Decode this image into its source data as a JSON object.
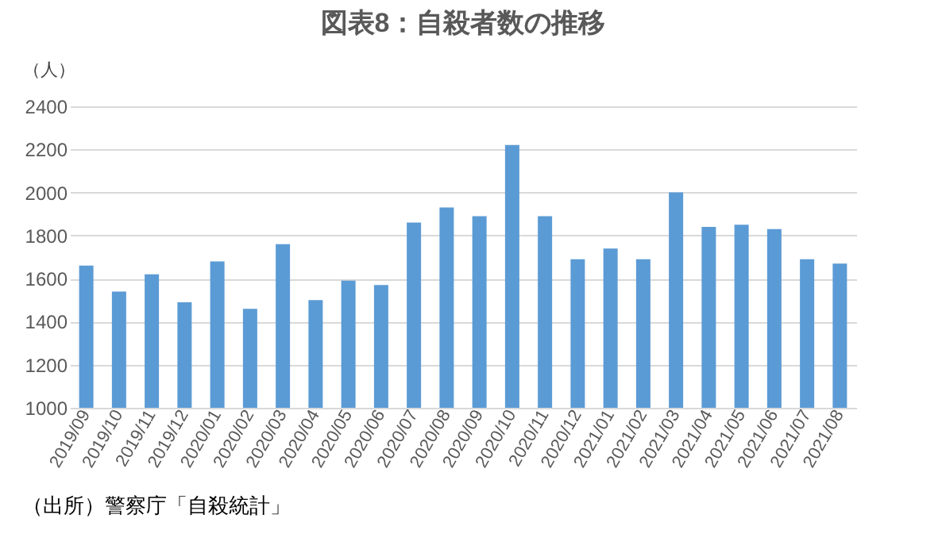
{
  "chart_data": {
    "type": "bar",
    "title": "図表8：自殺者数の推移",
    "ylabel": "（人）",
    "categories": [
      "2019/09",
      "2019/10",
      "2019/11",
      "2019/12",
      "2020/01",
      "2020/02",
      "2020/03",
      "2020/04",
      "2020/05",
      "2020/06",
      "2020/07",
      "2020/08",
      "2020/09",
      "2020/10",
      "2020/11",
      "2020/12",
      "2021/01",
      "2021/02",
      "2021/03",
      "2021/04",
      "2021/05",
      "2021/06",
      "2021/07",
      "2021/08"
    ],
    "values": [
      1660,
      1540,
      1620,
      1490,
      1680,
      1460,
      1760,
      1500,
      1590,
      1570,
      1860,
      1930,
      1890,
      2220,
      1890,
      1690,
      1740,
      1690,
      2000,
      1840,
      1850,
      1830,
      1690,
      1670
    ],
    "color": "#5b9bd5",
    "ylim": [
      1000,
      2400
    ],
    "yticks": [
      1000,
      1200,
      1400,
      1600,
      1800,
      2000,
      2200,
      2400
    ],
    "grid": "y",
    "annotations": [
      "（出所）警察庁「自殺統計」"
    ]
  }
}
